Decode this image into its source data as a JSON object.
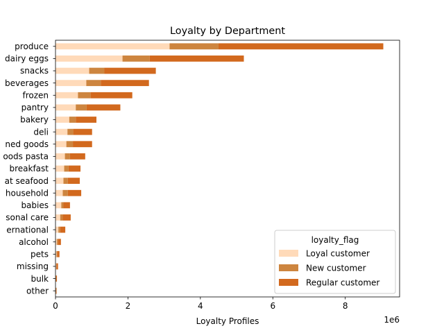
{
  "chart_data": {
    "type": "bar",
    "orientation": "horizontal",
    "stacked": true,
    "title": "Loyalty by Department",
    "xlabel": "Loyalty Profiles",
    "ylabel": "",
    "x_offset_label": "1e6",
    "xlim": [
      0,
      9.5
    ],
    "x_ticks": [
      "0",
      "2",
      "4",
      "6",
      "8"
    ],
    "x_tick_values": [
      0,
      2,
      4,
      6,
      8
    ],
    "grid": false,
    "legend": {
      "title": "loyalty_flag",
      "placement": "lower-right"
    },
    "categories": [
      "produce",
      "dairy eggs",
      "snacks",
      "beverages",
      "frozen",
      "pantry",
      "bakery",
      "deli",
      "canned goods",
      "dry goods pasta",
      "breakfast",
      "meat seafood",
      "household",
      "babies",
      "personal care",
      "international",
      "alcohol",
      "pets",
      "missing",
      "bulk",
      "other"
    ],
    "category_labels_visible": [
      "produce",
      "dairy eggs",
      "snacks",
      "beverages",
      "frozen",
      "pantry",
      "bakery",
      "deli",
      "ned goods",
      "oods pasta",
      "breakfast",
      "at seafood",
      "household",
      "babies",
      "sonal care",
      "ernational",
      "alcohol",
      "pets",
      "missing",
      "bulk",
      "other"
    ],
    "series": [
      {
        "name": "Loyal customer",
        "color": "#ffdab9",
        "values": [
          3.15,
          1.85,
          0.93,
          0.85,
          0.62,
          0.56,
          0.38,
          0.33,
          0.3,
          0.26,
          0.24,
          0.22,
          0.2,
          0.16,
          0.13,
          0.08,
          0.04,
          0.03,
          0.02,
          0.01,
          0.01
        ]
      },
      {
        "name": "New customer",
        "color": "#cd853f",
        "values": [
          1.35,
          0.75,
          0.42,
          0.4,
          0.35,
          0.3,
          0.18,
          0.16,
          0.18,
          0.14,
          0.12,
          0.12,
          0.14,
          0.06,
          0.07,
          0.05,
          0.03,
          0.02,
          0.01,
          0.01,
          0.01
        ]
      },
      {
        "name": "Regular customer",
        "color": "#d2691e",
        "values": [
          4.55,
          2.6,
          1.42,
          1.33,
          1.15,
          0.93,
          0.57,
          0.52,
          0.53,
          0.42,
          0.33,
          0.33,
          0.37,
          0.18,
          0.22,
          0.14,
          0.08,
          0.06,
          0.04,
          0.02,
          0.01
        ]
      }
    ]
  }
}
